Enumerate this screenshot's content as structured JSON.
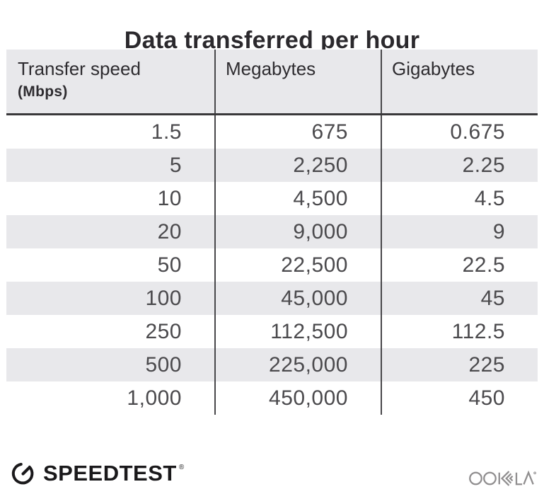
{
  "title": "Data transferred per hour",
  "table": {
    "columns": [
      {
        "label": "Transfer speed",
        "sublabel": "(Mbps)"
      },
      {
        "label": "Megabytes",
        "sublabel": ""
      },
      {
        "label": "Gigabytes",
        "sublabel": ""
      }
    ],
    "rows": [
      [
        "1.5",
        "675",
        "0.675"
      ],
      [
        "5",
        "2,250",
        "2.25"
      ],
      [
        "10",
        "4,500",
        "4.5"
      ],
      [
        "20",
        "9,000",
        "9"
      ],
      [
        "50",
        "22,500",
        "22.5"
      ],
      [
        "100",
        "45,000",
        "45"
      ],
      [
        "250",
        "112,500",
        "112.5"
      ],
      [
        "500",
        "225,000",
        "225"
      ],
      [
        "1,000",
        "450,000",
        "450"
      ]
    ]
  },
  "chart_data": {
    "type": "table",
    "title": "Data transferred per hour",
    "columns": [
      "Transfer speed (Mbps)",
      "Megabytes",
      "Gigabytes"
    ],
    "rows": [
      [
        1.5,
        675,
        0.675
      ],
      [
        5,
        2250,
        2.25
      ],
      [
        10,
        4500,
        4.5
      ],
      [
        20,
        9000,
        9
      ],
      [
        50,
        22500,
        22.5
      ],
      [
        100,
        45000,
        45
      ],
      [
        250,
        112500,
        112.5
      ],
      [
        500,
        225000,
        225
      ],
      [
        1000,
        450000,
        450
      ]
    ]
  },
  "footer": {
    "speedtest": {
      "label": "SPEEDTEST",
      "trademark": "®"
    },
    "ookla": {
      "label": "OOKLA",
      "trademark": "®"
    }
  },
  "colors": {
    "stripe": "#e8e8eb",
    "rule": "#39383a",
    "divider": "#48474a",
    "title_text": "#2b292d",
    "header_text": "#2e2c30",
    "data_text": "#4b4a4d",
    "speedtest_black": "#1a191b",
    "ookla_gray": "#908e8f"
  }
}
